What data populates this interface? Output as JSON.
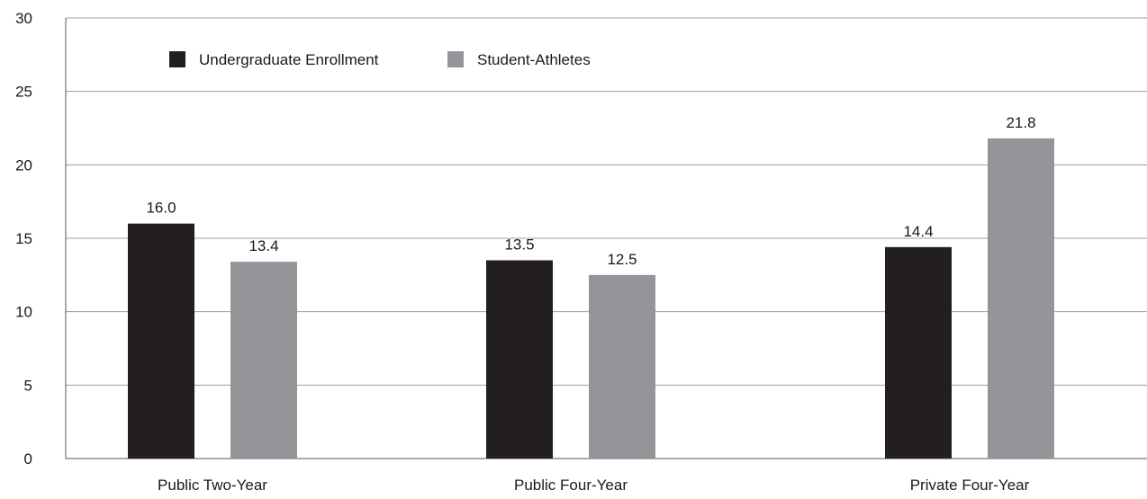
{
  "chart_data": {
    "type": "bar",
    "title": "",
    "xlabel": "",
    "ylabel": "",
    "ylim": [
      0,
      30
    ],
    "yticks": [
      0,
      5,
      10,
      15,
      20,
      25,
      30
    ],
    "grid": true,
    "legend_position": "top-left",
    "categories": [
      "Public Two-Year",
      "Public Four-Year",
      "Private Four-Year"
    ],
    "series": [
      {
        "name": "Undergraduate Enrollment",
        "color": "#231f20",
        "values": [
          16.0,
          13.5,
          14.4
        ],
        "labels": [
          "16.0",
          "13.5",
          "14.4"
        ]
      },
      {
        "name": "Student-Athletes",
        "color": "#939598",
        "values": [
          13.4,
          12.5,
          21.8
        ],
        "labels": [
          "13.4",
          "12.5",
          "21.8"
        ]
      }
    ]
  }
}
